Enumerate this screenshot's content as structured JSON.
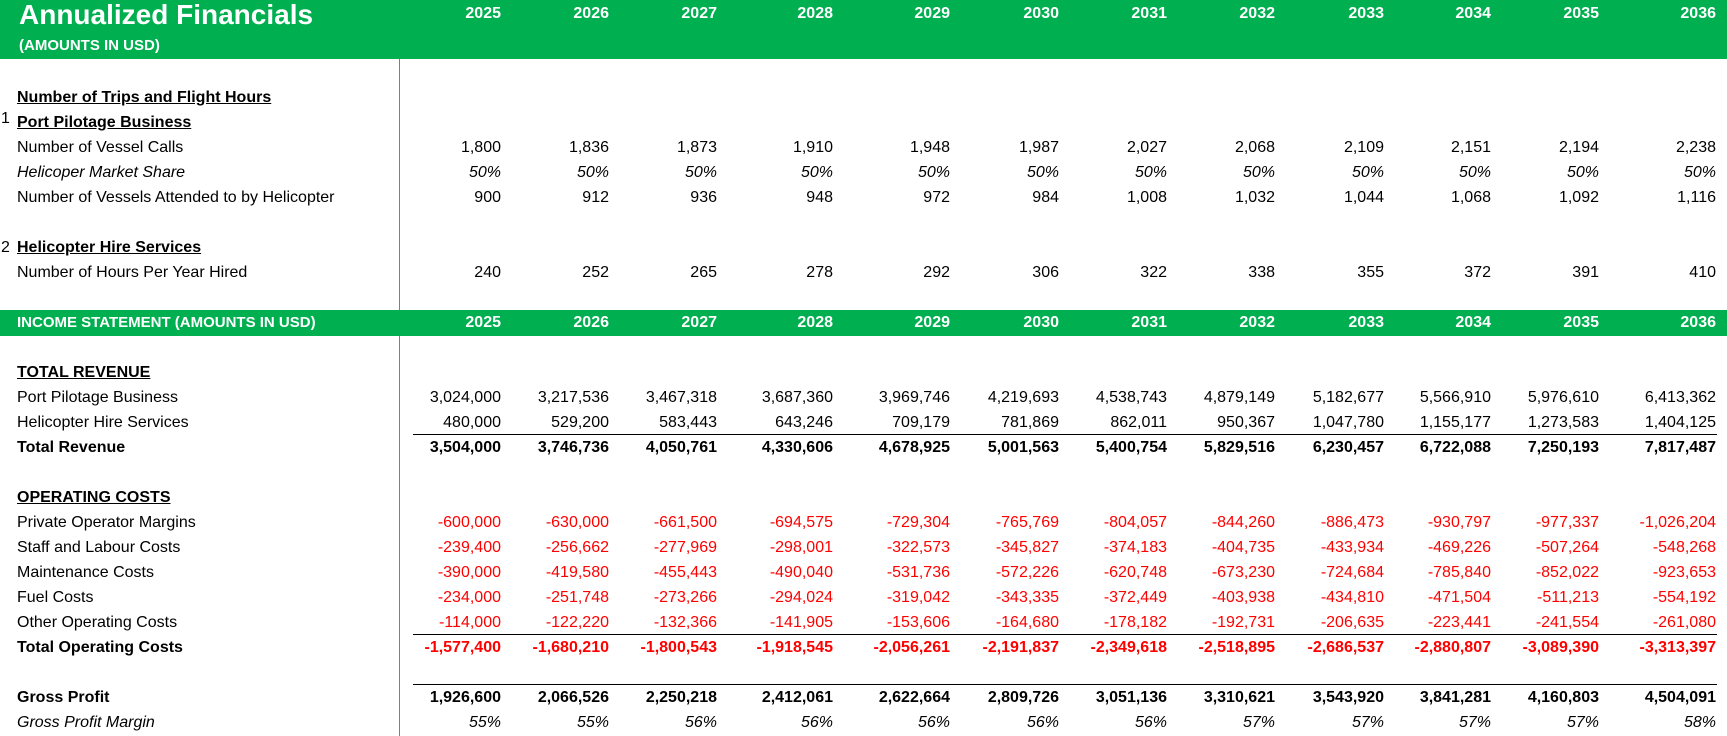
{
  "header": {
    "title": "Annualized Financials",
    "subtitle": "(AMOUNTS IN USD)"
  },
  "years": [
    "2025",
    "2026",
    "2027",
    "2028",
    "2029",
    "2030",
    "2031",
    "2032",
    "2033",
    "2034",
    "2035",
    "2036"
  ],
  "section_trips": {
    "title": "Number of Trips and Flight Hours"
  },
  "port": {
    "number": "1",
    "title": "Port Pilotage Business",
    "rows": [
      {
        "label": "Number of Vessel Calls",
        "values": [
          "1,800",
          "1,836",
          "1,873",
          "1,910",
          "1,948",
          "1,987",
          "2,027",
          "2,068",
          "2,109",
          "2,151",
          "2,194",
          "2,238"
        ]
      },
      {
        "label": "Helicoper Market Share",
        "values": [
          "50%",
          "50%",
          "50%",
          "50%",
          "50%",
          "50%",
          "50%",
          "50%",
          "50%",
          "50%",
          "50%",
          "50%"
        ]
      },
      {
        "label": "Number of Vessels Attended to by Helicopter",
        "values": [
          "900",
          "912",
          "936",
          "948",
          "972",
          "984",
          "1,008",
          "1,032",
          "1,044",
          "1,068",
          "1,092",
          "1,116"
        ]
      }
    ]
  },
  "hire": {
    "number": "2",
    "title": "Helicopter Hire Services",
    "rows": [
      {
        "label": "Number of Hours Per Year Hired",
        "values": [
          "240",
          "252",
          "265",
          "278",
          "292",
          "306",
          "322",
          "338",
          "355",
          "372",
          "391",
          "410"
        ]
      }
    ]
  },
  "income": {
    "header": "INCOME STATEMENT (AMOUNTS IN USD)",
    "revenue_title": "TOTAL REVENUE",
    "revenue_rows": [
      {
        "label": "Port Pilotage Business",
        "values": [
          "3,024,000",
          "3,217,536",
          "3,467,318",
          "3,687,360",
          "3,969,746",
          "4,219,693",
          "4,538,743",
          "4,879,149",
          "5,182,677",
          "5,566,910",
          "5,976,610",
          "6,413,362"
        ]
      },
      {
        "label": "Helicopter Hire Services",
        "values": [
          "480,000",
          "529,200",
          "583,443",
          "643,246",
          "709,179",
          "781,869",
          "862,011",
          "950,367",
          "1,047,780",
          "1,155,177",
          "1,273,583",
          "1,404,125"
        ]
      }
    ],
    "total_revenue": {
      "label": "Total Revenue",
      "values": [
        "3,504,000",
        "3,746,736",
        "4,050,761",
        "4,330,606",
        "4,678,925",
        "5,001,563",
        "5,400,754",
        "5,829,516",
        "6,230,457",
        "6,722,088",
        "7,250,193",
        "7,817,487"
      ]
    },
    "costs_title": "OPERATING COSTS",
    "cost_rows": [
      {
        "label": "Private Operator Margins",
        "values": [
          "-600,000",
          "-630,000",
          "-661,500",
          "-694,575",
          "-729,304",
          "-765,769",
          "-804,057",
          "-844,260",
          "-886,473",
          "-930,797",
          "-977,337",
          "-1,026,204"
        ]
      },
      {
        "label": "Staff and Labour Costs",
        "values": [
          "-239,400",
          "-256,662",
          "-277,969",
          "-298,001",
          "-322,573",
          "-345,827",
          "-374,183",
          "-404,735",
          "-433,934",
          "-469,226",
          "-507,264",
          "-548,268"
        ]
      },
      {
        "label": "Maintenance Costs",
        "values": [
          "-390,000",
          "-419,580",
          "-455,443",
          "-490,040",
          "-531,736",
          "-572,226",
          "-620,748",
          "-673,230",
          "-724,684",
          "-785,840",
          "-852,022",
          "-923,653"
        ]
      },
      {
        "label": "Fuel Costs",
        "values": [
          "-234,000",
          "-251,748",
          "-273,266",
          "-294,024",
          "-319,042",
          "-343,335",
          "-372,449",
          "-403,938",
          "-434,810",
          "-471,504",
          "-511,213",
          "-554,192"
        ]
      },
      {
        "label": "Other Operating Costs",
        "values": [
          "-114,000",
          "-122,220",
          "-132,366",
          "-141,905",
          "-153,606",
          "-164,680",
          "-178,182",
          "-192,731",
          "-206,635",
          "-223,441",
          "-241,554",
          "-261,080"
        ]
      }
    ],
    "total_costs": {
      "label": "Total Operating Costs",
      "values": [
        "-1,577,400",
        "-1,680,210",
        "-1,800,543",
        "-1,918,545",
        "-2,056,261",
        "-2,191,837",
        "-2,349,618",
        "-2,518,895",
        "-2,686,537",
        "-2,880,807",
        "-3,089,390",
        "-3,313,397"
      ]
    },
    "gross_profit": {
      "label": "Gross Profit",
      "values": [
        "1,926,600",
        "2,066,526",
        "2,250,218",
        "2,412,061",
        "2,622,664",
        "2,809,726",
        "3,051,136",
        "3,310,621",
        "3,543,920",
        "3,841,281",
        "4,160,803",
        "4,504,091"
      ]
    },
    "gross_margin": {
      "label": "Gross Profit Margin",
      "values": [
        "55%",
        "55%",
        "56%",
        "56%",
        "56%",
        "56%",
        "56%",
        "57%",
        "57%",
        "57%",
        "57%",
        "58%"
      ]
    }
  },
  "colors": {
    "band": "#00b050",
    "negative": "#ff0000"
  }
}
